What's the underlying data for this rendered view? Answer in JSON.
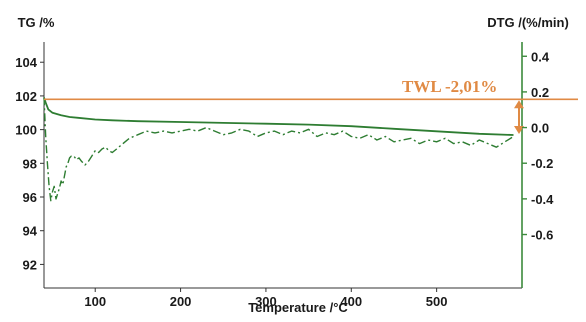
{
  "chart_data": {
    "type": "line",
    "xlabel": "Temperature /°C",
    "ylabel_left": "TG /%",
    "ylabel_right": "DTG /(%/min)",
    "xlim": [
      40,
      600
    ],
    "ylim_left": [
      90.6,
      105.2
    ],
    "ylim_right": [
      -0.9,
      0.48
    ],
    "x_ticks": [
      "100",
      "200",
      "300",
      "400",
      "500"
    ],
    "x_tick_values": [
      100,
      200,
      300,
      400,
      500
    ],
    "y_left_ticks": [
      "104",
      "102",
      "100",
      "98",
      "96",
      "94",
      "92"
    ],
    "y_left_tick_values": [
      104,
      102,
      100,
      98,
      96,
      94,
      92
    ],
    "y_right_ticks": [
      "0.4",
      "0.2",
      "0.0",
      "-0.2",
      "-0.4",
      "-0.6"
    ],
    "y_right_tick_values": [
      0.4,
      0.2,
      0.0,
      -0.2,
      -0.4,
      -0.6
    ],
    "annotation": "TWL -2,01%",
    "reference_line_value": 101.8,
    "colors": {
      "tg": "#2e7d32",
      "dtg": "#2e7d32",
      "axis_right": "#3c8a3c",
      "annotation": "#e08a44",
      "axis": "#333333"
    },
    "series": [
      {
        "axis": "left",
        "style": "solid",
        "x": [
          40,
          42,
          45,
          50,
          60,
          70,
          80,
          100,
          120,
          150,
          200,
          250,
          300,
          350,
          400,
          450,
          500,
          550,
          590
        ],
        "values": [
          101.9,
          101.6,
          101.2,
          101.0,
          100.85,
          100.75,
          100.7,
          100.6,
          100.55,
          100.5,
          100.45,
          100.4,
          100.35,
          100.3,
          100.2,
          100.05,
          99.9,
          99.75,
          99.68
        ]
      },
      {
        "axis": "right",
        "style": "dashdot",
        "x": [
          40,
          42,
          44,
          46,
          48,
          50,
          52,
          54,
          56,
          58,
          60,
          62,
          64,
          66,
          68,
          70,
          72,
          75,
          78,
          81,
          84,
          88,
          92,
          96,
          100,
          104,
          108,
          112,
          116,
          120,
          125,
          130,
          135,
          140,
          145,
          150,
          155,
          160,
          170,
          180,
          190,
          200,
          210,
          220,
          230,
          240,
          250,
          260,
          270,
          280,
          290,
          300,
          310,
          320,
          330,
          340,
          350,
          360,
          370,
          380,
          390,
          400,
          410,
          420,
          430,
          440,
          450,
          460,
          470,
          480,
          490,
          500,
          510,
          520,
          530,
          540,
          550,
          560,
          570,
          580,
          590
        ],
        "values": [
          0.17,
          -0.05,
          -0.2,
          -0.33,
          -0.41,
          -0.36,
          -0.33,
          -0.4,
          -0.37,
          -0.34,
          -0.3,
          -0.32,
          -0.27,
          -0.22,
          -0.2,
          -0.17,
          -0.16,
          -0.16,
          -0.18,
          -0.17,
          -0.19,
          -0.21,
          -0.19,
          -0.16,
          -0.13,
          -0.14,
          -0.12,
          -0.11,
          -0.13,
          -0.14,
          -0.12,
          -0.1,
          -0.08,
          -0.06,
          -0.05,
          -0.04,
          -0.03,
          -0.02,
          -0.03,
          -0.02,
          -0.03,
          -0.02,
          -0.01,
          -0.02,
          0.0,
          -0.02,
          -0.04,
          -0.03,
          -0.01,
          -0.02,
          -0.05,
          -0.03,
          -0.02,
          -0.04,
          -0.02,
          -0.03,
          -0.01,
          -0.05,
          -0.03,
          -0.04,
          -0.02,
          -0.05,
          -0.06,
          -0.04,
          -0.07,
          -0.05,
          -0.08,
          -0.07,
          -0.06,
          -0.09,
          -0.07,
          -0.08,
          -0.06,
          -0.09,
          -0.08,
          -0.1,
          -0.07,
          -0.09,
          -0.11,
          -0.08,
          -0.05
        ]
      }
    ]
  }
}
